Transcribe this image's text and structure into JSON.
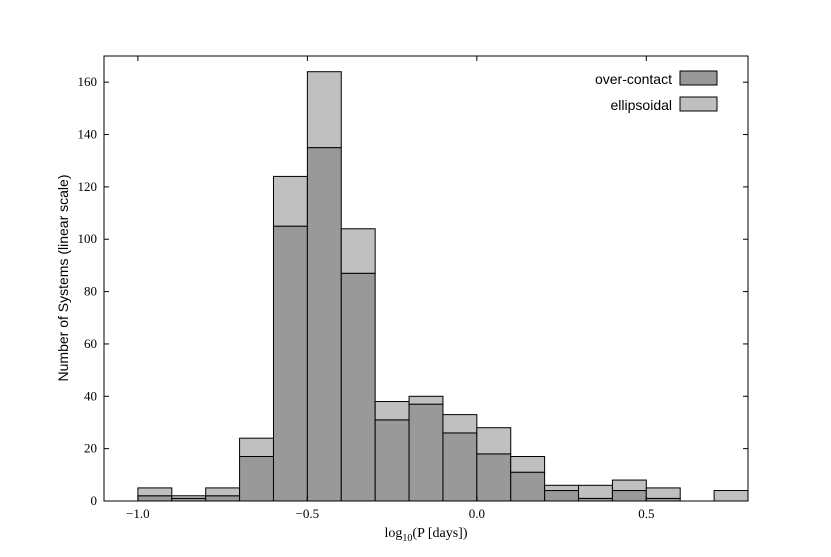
{
  "chart_data": {
    "type": "bar",
    "stacked": true,
    "bins": [
      {
        "start": -1.0,
        "end": -0.9
      },
      {
        "start": -0.9,
        "end": -0.8
      },
      {
        "start": -0.8,
        "end": -0.7
      },
      {
        "start": -0.7,
        "end": -0.6
      },
      {
        "start": -0.6,
        "end": -0.5
      },
      {
        "start": -0.5,
        "end": -0.4
      },
      {
        "start": -0.4,
        "end": -0.3
      },
      {
        "start": -0.3,
        "end": -0.2
      },
      {
        "start": -0.2,
        "end": -0.1
      },
      {
        "start": -0.1,
        "end": 0.0
      },
      {
        "start": 0.0,
        "end": 0.1
      },
      {
        "start": 0.1,
        "end": 0.2
      },
      {
        "start": 0.2,
        "end": 0.3
      },
      {
        "start": 0.3,
        "end": 0.4
      },
      {
        "start": 0.4,
        "end": 0.5
      },
      {
        "start": 0.5,
        "end": 0.6
      },
      {
        "start": 0.6,
        "end": 0.7
      },
      {
        "start": 0.7,
        "end": 0.8
      }
    ],
    "series": [
      {
        "name": "over-contact",
        "color": "#999999",
        "values": [
          2,
          1,
          2,
          17,
          105,
          135,
          87,
          31,
          37,
          26,
          18,
          11,
          4,
          1,
          4,
          1,
          0,
          0
        ]
      },
      {
        "name": "ellipsoidal",
        "color": "#c0c0c0",
        "values": [
          3,
          1,
          3,
          7,
          19,
          29,
          17,
          7,
          3,
          7,
          10,
          6,
          2,
          5,
          4,
          4,
          0,
          4
        ]
      }
    ],
    "xlabel": "log10(P [days])",
    "ylabel": "Number of Systems (linear scale)",
    "xlim": [
      -1.1,
      0.8
    ],
    "ylim": [
      0,
      170
    ],
    "xticks": [
      -1.0,
      -0.5,
      0.0,
      0.5
    ],
    "xtick_labels": [
      "−1.0",
      "−0.5",
      "0.0",
      "0.5"
    ],
    "yticks": [
      0,
      20,
      40,
      60,
      80,
      100,
      120,
      140,
      160
    ],
    "ytick_labels": [
      "0",
      "20",
      "40",
      "60",
      "80",
      "100",
      "120",
      "140",
      "160"
    ],
    "legend_position": "top-right",
    "grid": false
  }
}
